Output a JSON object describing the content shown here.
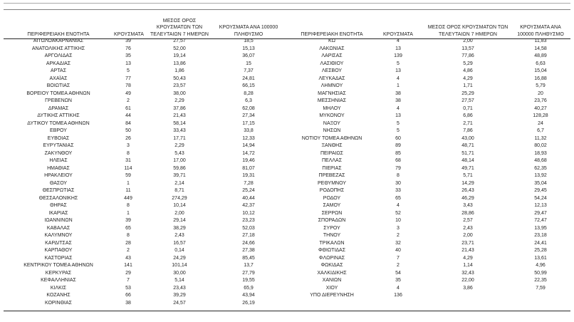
{
  "colors": {
    "background": "#ffffff",
    "text": "#1f1f1f",
    "rule_light": "#a9a9a9",
    "rule_dark": "#262626"
  },
  "columns": {
    "region": "ΠΕΡΙΦΕΡΕΙΑΚΗ ΕΝΟΤΗΤΑ",
    "cases": "ΚΡΟΥΣΜΑΤΑ",
    "avg7": "ΜΕΣΟΣ ΟΡΟΣ ΚΡΟΥΣΜΑΤΩΝ ΤΩΝ ΤΕΛΕΥΤΑΙΩΝ 7 ΗΜΕΡΩΝ",
    "per100k": "ΚΡΟΥΣΜΑΤΑ ΑΝΑ 100000 ΠΛΗΘΥΣΜΟ"
  },
  "tables": [
    {
      "rows": [
        [
          "ΑΙΤΩΛΟΑΚΑΡΝΑΝΙΑΣ",
          "39",
          "27,57",
          "18,5"
        ],
        [
          "ΑΝΑΤΟΛΙΚΗΣ ΑΤΤΙΚΗΣ",
          "76",
          "52,00",
          "15,13"
        ],
        [
          "ΑΡΓΟΛΙΔΑΣ",
          "35",
          "19,14",
          "36,07"
        ],
        [
          "ΑΡΚΑΔΙΑΣ",
          "13",
          "13,86",
          "15"
        ],
        [
          "ΑΡΤΑΣ",
          "5",
          "1,86",
          "7,37"
        ],
        [
          "ΑΧΑΪΑΣ",
          "77",
          "50,43",
          "24,81"
        ],
        [
          "ΒΟΙΩΤΙΑΣ",
          "78",
          "23,57",
          "66,15"
        ],
        [
          "ΒΟΡΕΙΟΥ ΤΟΜΕΑ ΑΘΗΝΩΝ",
          "49",
          "38,00",
          "8,28"
        ],
        [
          "ΓΡΕΒΕΝΩΝ",
          "2",
          "2,29",
          "6,3"
        ],
        [
          "ΔΡΑΜΑΣ",
          "61",
          "37,86",
          "62,08"
        ],
        [
          "ΔΥΤΙΚΗΣ ΑΤΤΙΚΗΣ",
          "44",
          "21,43",
          "27,34"
        ],
        [
          "ΔΥΤΙΚΟΥ ΤΟΜΕΑ ΑΘΗΝΩΝ",
          "84",
          "58,14",
          "17,15"
        ],
        [
          "ΕΒΡΟΥ",
          "50",
          "33,43",
          "33,8"
        ],
        [
          "ΕΥΒΟΙΑΣ",
          "26",
          "17,71",
          "12,33"
        ],
        [
          "ΕΥΡΥΤΑΝΙΑΣ",
          "3",
          "2,29",
          "14,94"
        ],
        [
          "ΖΑΚΥΝΘΟΥ",
          "8",
          "5,43",
          "14,72"
        ],
        [
          "ΗΛΕΙΑΣ",
          "31",
          "17,00",
          "19,46"
        ],
        [
          "ΗΜΑΘΙΑΣ",
          "114",
          "59,86",
          "81,07"
        ],
        [
          "ΗΡΑΚΛΕΙΟΥ",
          "59",
          "39,71",
          "19,31"
        ],
        [
          "ΘΑΣΟΥ",
          "1",
          "2,14",
          "7,28"
        ],
        [
          "ΘΕΣΠΡΩΤΙΑΣ",
          "11",
          "8,71",
          "25,24"
        ],
        [
          "ΘΕΣΣΑΛΟΝΙΚΗΣ",
          "449",
          "274,29",
          "40,44"
        ],
        [
          "ΘΗΡΑΣ",
          "8",
          "10,14",
          "42,37"
        ],
        [
          "ΙΚΑΡΙΑΣ",
          "1",
          "2,00",
          "10,12"
        ],
        [
          "ΙΩΑΝΝΙΝΩΝ",
          "39",
          "29,14",
          "23,23"
        ],
        [
          "ΚΑΒΑΛΑΣ",
          "65",
          "38,29",
          "52,03"
        ],
        [
          "ΚΑΛΥΜΝΟΥ",
          "8",
          "2,43",
          "27,18"
        ],
        [
          "ΚΑΡΔΙΤΣΑΣ",
          "28",
          "16,57",
          "24,66"
        ],
        [
          "ΚΑΡΠΑΘΟΥ",
          "2",
          "0,14",
          "27,38"
        ],
        [
          "ΚΑΣΤΟΡΙΑΣ",
          "43",
          "24,29",
          "85,45"
        ],
        [
          "ΚΕΝΤΡΙΚΟΥ ΤΟΜΕΑ ΑΘΗΝΩΝ",
          "141",
          "101,14",
          "13,7"
        ],
        [
          "ΚΕΡΚΥΡΑΣ",
          "29",
          "30,00",
          "27,79"
        ],
        [
          "ΚΕΦΑΛΛΗΝΙΑΣ",
          "7",
          "5,14",
          "19,55"
        ],
        [
          "ΚΙΛΚΙΣ",
          "53",
          "23,43",
          "65,9"
        ],
        [
          "ΚΟΖΑΝΗΣ",
          "66",
          "39,29",
          "43,94"
        ],
        [
          "ΚΟΡΙΝΘΙΑΣ",
          "38",
          "24,57",
          "26,19"
        ]
      ]
    },
    {
      "rows": [
        [
          "ΚΩ",
          "4",
          "2,00",
          "11,83"
        ],
        [
          "ΛΑΚΩΝΙΑΣ",
          "13",
          "13,57",
          "14,58"
        ],
        [
          "ΛΑΡΙΣΑΣ",
          "139",
          "77,86",
          "48,89"
        ],
        [
          "ΛΑΣΙΘΙΟΥ",
          "5",
          "5,29",
          "6,63"
        ],
        [
          "ΛΕΣΒΟΥ",
          "13",
          "4,86",
          "15,04"
        ],
        [
          "ΛΕΥΚΑΔΑΣ",
          "4",
          "4,29",
          "16,88"
        ],
        [
          "ΛΗΜΝΟΥ",
          "1",
          "1,71",
          "5,79"
        ],
        [
          "ΜΑΓΝΗΣΙΑΣ",
          "38",
          "25,29",
          "20"
        ],
        [
          "ΜΕΣΣΗΝΙΑΣ",
          "38",
          "27,57",
          "23,76"
        ],
        [
          "ΜΗΛΟΥ",
          "4",
          "0,71",
          "40,27"
        ],
        [
          "ΜΥΚΟΝΟΥ",
          "13",
          "6,86",
          "128,28"
        ],
        [
          "ΝΑΞΟΥ",
          "5",
          "2,71",
          "24"
        ],
        [
          "ΝΗΣΩΝ",
          "5",
          "7,86",
          "6,7"
        ],
        [
          "ΝΟΤΙΟΥ ΤΟΜΕΑ ΑΘΗΝΩΝ",
          "60",
          "43,00",
          "11,32"
        ],
        [
          "ΞΑΝΘΗΣ",
          "89",
          "48,71",
          "80,02"
        ],
        [
          "ΠΕΙΡΑΙΩΣ",
          "85",
          "51,71",
          "18,93"
        ],
        [
          "ΠΕΛΛΑΣ",
          "68",
          "48,14",
          "48,68"
        ],
        [
          "ΠΙΕΡΙΑΣ",
          "79",
          "49,71",
          "62,35"
        ],
        [
          "ΠΡΕΒΕΖΑΣ",
          "8",
          "5,71",
          "13,92"
        ],
        [
          "ΡΕΘΥΜΝΟΥ",
          "30",
          "14,29",
          "35,04"
        ],
        [
          "ΡΟΔΟΠΗΣ",
          "33",
          "26,43",
          "29,45"
        ],
        [
          "ΡΟΔΟΥ",
          "65",
          "46,29",
          "54,24"
        ],
        [
          "ΣΑΜΟΥ",
          "4",
          "3,43",
          "12,13"
        ],
        [
          "ΣΕΡΡΩΝ",
          "52",
          "28,86",
          "29,47"
        ],
        [
          "ΣΠΟΡΑΔΩΝ",
          "10",
          "2,57",
          "72,47"
        ],
        [
          "ΣΥΡΟΥ",
          "3",
          "2,43",
          "13,95"
        ],
        [
          "ΤΗΝΟΥ",
          "2",
          "2,00",
          "23,18"
        ],
        [
          "ΤΡΙΚΑΛΩΝ",
          "32",
          "23,71",
          "24,41"
        ],
        [
          "ΦΘΙΩΤΙΔΑΣ",
          "40",
          "21,43",
          "25,28"
        ],
        [
          "ΦΛΩΡΙΝΑΣ",
          "7",
          "4,29",
          "13,61"
        ],
        [
          "ΦΩΚΙΔΑΣ",
          "2",
          "1,14",
          "4,96"
        ],
        [
          "ΧΑΛΚΙΔΙΚΗΣ",
          "54",
          "32,43",
          "50,99"
        ],
        [
          "ΧΑΝΙΩΝ",
          "35",
          "22,00",
          "22,35"
        ],
        [
          "ΧΙΟΥ",
          "4",
          "3,86",
          "7,59"
        ],
        [
          "ΥΠΟ ΔΙΕΡΕΥΝΗΣΗ",
          "136",
          "",
          ""
        ]
      ]
    }
  ]
}
